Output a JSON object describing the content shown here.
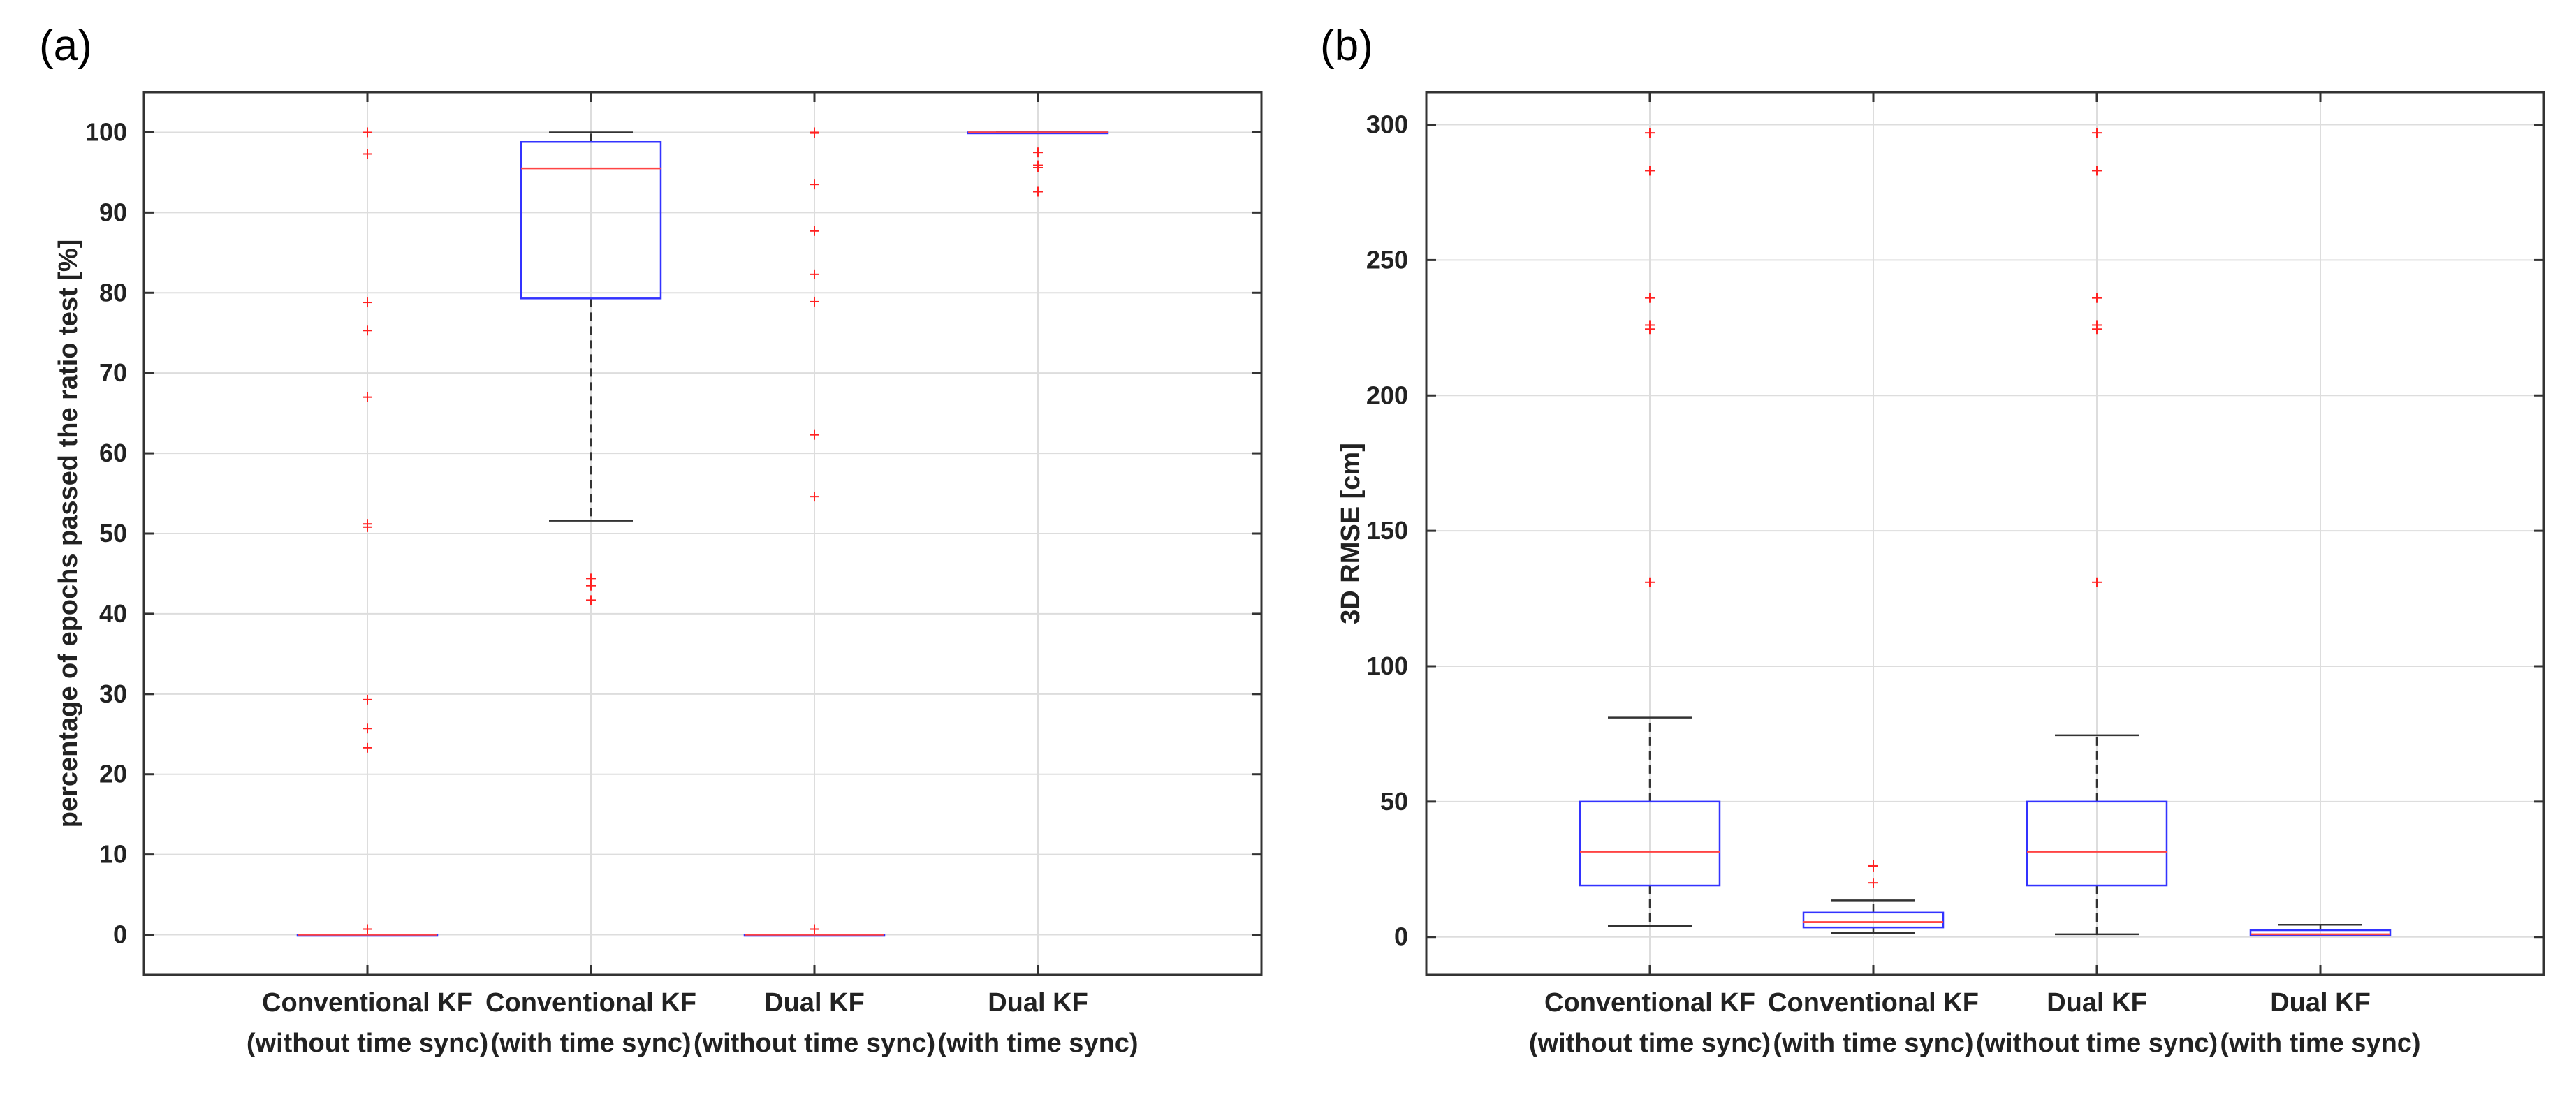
{
  "chart_data": [
    {
      "panel_label": "(a)",
      "type": "box",
      "title": "",
      "xlabel": "",
      "ylabel": "percentage of epochs passed the ratio test [%]",
      "ylim": [
        -5,
        105
      ],
      "yticks": [
        0,
        10,
        20,
        30,
        40,
        50,
        60,
        70,
        80,
        90,
        100
      ],
      "grid": true,
      "categories": [
        [
          "Conventional KF",
          "(without time sync)"
        ],
        [
          "Conventional KF",
          "(with time sync)"
        ],
        [
          "Dual KF",
          "(without time sync)"
        ],
        [
          "Dual KF",
          "(with time sync)"
        ]
      ],
      "boxes": [
        {
          "whisker_low": 0,
          "q1": 0,
          "median": 0,
          "q3": 0,
          "whisker_high": 0,
          "outliers": [
            100,
            97.3,
            78.8,
            75.3,
            67.0,
            51.2,
            50.8,
            29.3,
            25.7,
            23.3,
            0.7
          ]
        },
        {
          "whisker_low": 51.6,
          "q1": 79.3,
          "median": 95.5,
          "q3": 98.8,
          "whisker_high": 100,
          "outliers": [
            44.4,
            43.5,
            41.7
          ]
        },
        {
          "whisker_low": 0,
          "q1": 0,
          "median": 0,
          "q3": 0,
          "whisker_high": 0,
          "outliers": [
            100,
            99.9,
            93.5,
            87.7,
            82.3,
            78.9,
            62.3,
            54.6,
            0.7
          ]
        },
        {
          "whisker_low": 100,
          "q1": 100,
          "median": 100,
          "q3": 100,
          "whisker_high": 100,
          "outliers": [
            97.5,
            95.9,
            95.6,
            92.6
          ]
        }
      ]
    },
    {
      "panel_label": "(b)",
      "type": "box",
      "title": "",
      "xlabel": "",
      "ylabel": "3D RMSE [cm]",
      "ylim": [
        -14,
        312
      ],
      "yticks": [
        0,
        50,
        100,
        150,
        200,
        250,
        300
      ],
      "grid": true,
      "categories": [
        [
          "Conventional KF",
          "(without time sync)"
        ],
        [
          "Conventional KF",
          "(with time sync)"
        ],
        [
          "Dual KF",
          "(without time sync)"
        ],
        [
          "Dual KF",
          "(with time sync)"
        ]
      ],
      "boxes": [
        {
          "whisker_low": 4,
          "q1": 19,
          "median": 31.5,
          "q3": 50,
          "whisker_high": 81,
          "outliers": [
            297,
            283,
            236,
            226,
            224.5,
            131
          ]
        },
        {
          "whisker_low": 1.5,
          "q1": 3.5,
          "median": 5.5,
          "q3": 9,
          "whisker_high": 13.5,
          "outliers": [
            26.5,
            26,
            20
          ]
        },
        {
          "whisker_low": 1,
          "q1": 19,
          "median": 31.5,
          "q3": 50,
          "whisker_high": 74.5,
          "outliers": [
            297,
            283,
            236,
            226,
            224.5,
            131
          ]
        },
        {
          "whisker_low": 0.5,
          "q1": 0.5,
          "median": 1,
          "q3": 2.5,
          "whisker_high": 4.5,
          "outliers": []
        }
      ]
    }
  ],
  "colors": {
    "box": "#3333ff",
    "median": "#ff4444",
    "whisker": "#333333",
    "outlier": "#ff2222",
    "grid": "#dddddd",
    "axis": "#333333"
  }
}
